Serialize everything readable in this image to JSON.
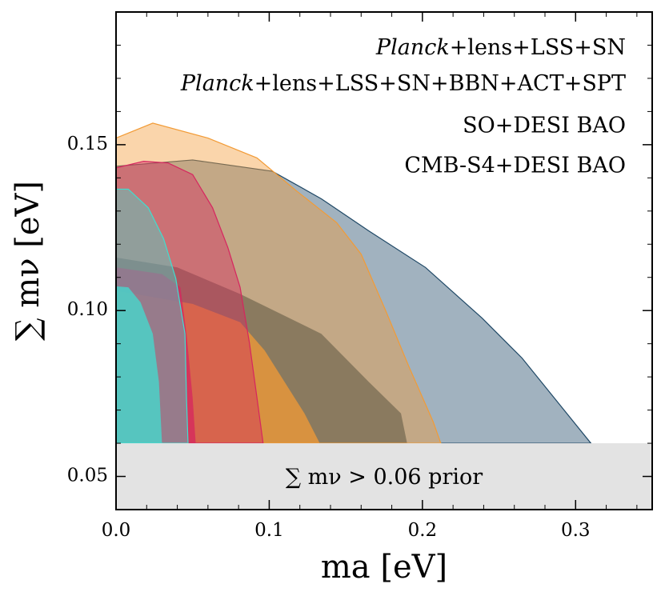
{
  "chart_data": {
    "type": "contour",
    "xlabel": "ma [eV]",
    "ylabel": "∑ mν [eV]",
    "xlim": [
      0,
      0.35
    ],
    "ylim": [
      0.04,
      0.19
    ],
    "xticks": [
      {
        "value": 0,
        "label": "0.0"
      },
      0.1,
      0.2,
      0.3
    ],
    "yticks": [
      0.05,
      {
        "value": 0.1,
        "label": "0.10"
      },
      0.15
    ],
    "xminorticks": [
      0.02,
      0.04,
      0.06,
      0.08,
      0.12,
      0.14,
      0.16,
      0.18,
      0.22,
      0.24,
      0.26,
      0.28,
      0.32,
      0.34
    ],
    "yminorticks": [
      0.06,
      0.07,
      0.08,
      0.09,
      0.11,
      0.12,
      0.13,
      0.14,
      0.16,
      0.17,
      0.18
    ],
    "prior": {
      "value": 0.06,
      "label": "∑ mν > 0.06 prior",
      "color": "#e3e3e3"
    },
    "series": [
      {
        "name": "Planck+lens+LSS+SN",
        "color": "#1f4866",
        "outer": {
          "x": [
            0,
            0.05,
            0.102,
            0.134,
            0.165,
            0.202,
            0.239,
            0.265,
            0.286,
            0.31,
            0
          ],
          "y": [
            0.1435,
            0.1454,
            0.142,
            0.1337,
            0.124,
            0.113,
            0.0977,
            0.0857,
            0.0737,
            0.06,
            0.06
          ]
        },
        "inner": {
          "x": [
            0,
            0.04,
            0.081,
            0.134,
            0.165,
            0.186,
            0.19,
            0
          ],
          "y": [
            0.116,
            0.113,
            0.105,
            0.093,
            0.0785,
            0.069,
            0.06,
            0.06
          ]
        }
      },
      {
        "name": "Planck+lens+LSS+SN+BBN+ACT+SPT",
        "color": "#f29b36",
        "outer": {
          "x": [
            0,
            0.024,
            0.06,
            0.092,
            0.118,
            0.144,
            0.16,
            0.176,
            0.191,
            0.207,
            0.212,
            0
          ],
          "y": [
            0.152,
            0.1565,
            0.152,
            0.146,
            0.136,
            0.1265,
            0.117,
            0.1,
            0.0833,
            0.0665,
            0.06,
            0.06
          ]
        },
        "inner": {
          "x": [
            0,
            0.05,
            0.081,
            0.097,
            0.11,
            0.123,
            0.133,
            0
          ],
          "y": [
            0.106,
            0.102,
            0.0965,
            0.088,
            0.0785,
            0.069,
            0.06,
            0.06
          ]
        }
      },
      {
        "name": "SO+DESI BAO",
        "color": "#d6255f",
        "outer": {
          "x": [
            0,
            0.018,
            0.034,
            0.05,
            0.063,
            0.073,
            0.081,
            0.087,
            0.092,
            0.096,
            0
          ],
          "y": [
            0.143,
            0.145,
            0.1445,
            0.141,
            0.131,
            0.119,
            0.107,
            0.0905,
            0.0737,
            0.06,
            0.06
          ]
        },
        "inner": {
          "x": [
            0,
            0.03,
            0.042,
            0.046,
            0.05,
            0.052,
            0
          ],
          "y": [
            0.113,
            0.111,
            0.107,
            0.093,
            0.0737,
            0.06,
            0.06
          ]
        }
      },
      {
        "name": "CMB-S4+DESI BAO",
        "color": "#40ded0",
        "outer": {
          "x": [
            0,
            0.008,
            0.021,
            0.031,
            0.039,
            0.045,
            0.046,
            0.047,
            0
          ],
          "y": [
            0.1366,
            0.1366,
            0.131,
            0.1217,
            0.1097,
            0.093,
            0.0737,
            0.06,
            0.06
          ]
        },
        "inner": {
          "x": [
            0,
            0.008,
            0.016,
            0.024,
            0.028,
            0.03,
            0
          ],
          "y": [
            0.1073,
            0.107,
            0.1025,
            0.093,
            0.0785,
            0.06,
            0.06
          ]
        }
      }
    ]
  }
}
